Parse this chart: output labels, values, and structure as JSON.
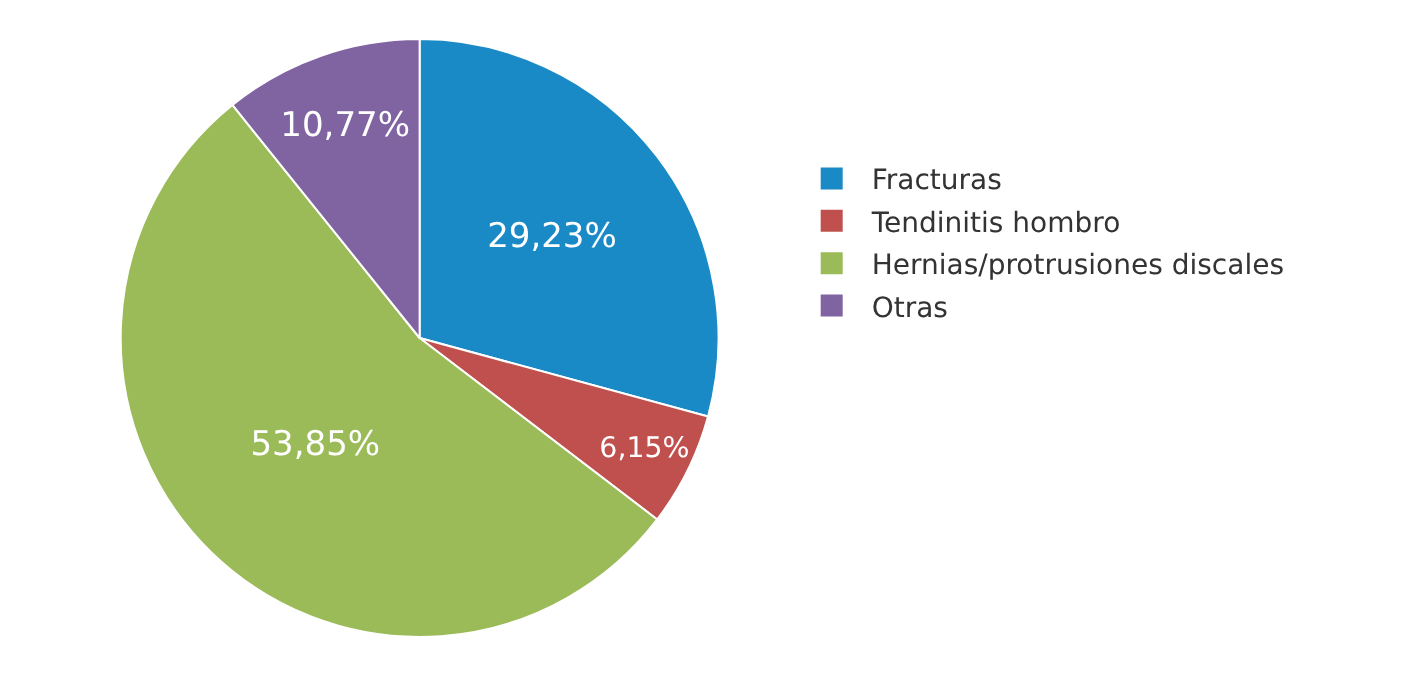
{
  "chart_data": {
    "type": "pie",
    "categories": [
      "Fracturas",
      "Tendinitis hombro",
      "Hernias/protrusiones discales",
      "Otras"
    ],
    "values": [
      29.23,
      6.15,
      53.85,
      10.77
    ],
    "value_labels": [
      "29,23%",
      "6,15%",
      "53,85%",
      "10,77%"
    ],
    "colors": [
      "#1a8ac6",
      "#c0504d",
      "#9bbb59",
      "#8064a2"
    ],
    "legend": "right"
  }
}
